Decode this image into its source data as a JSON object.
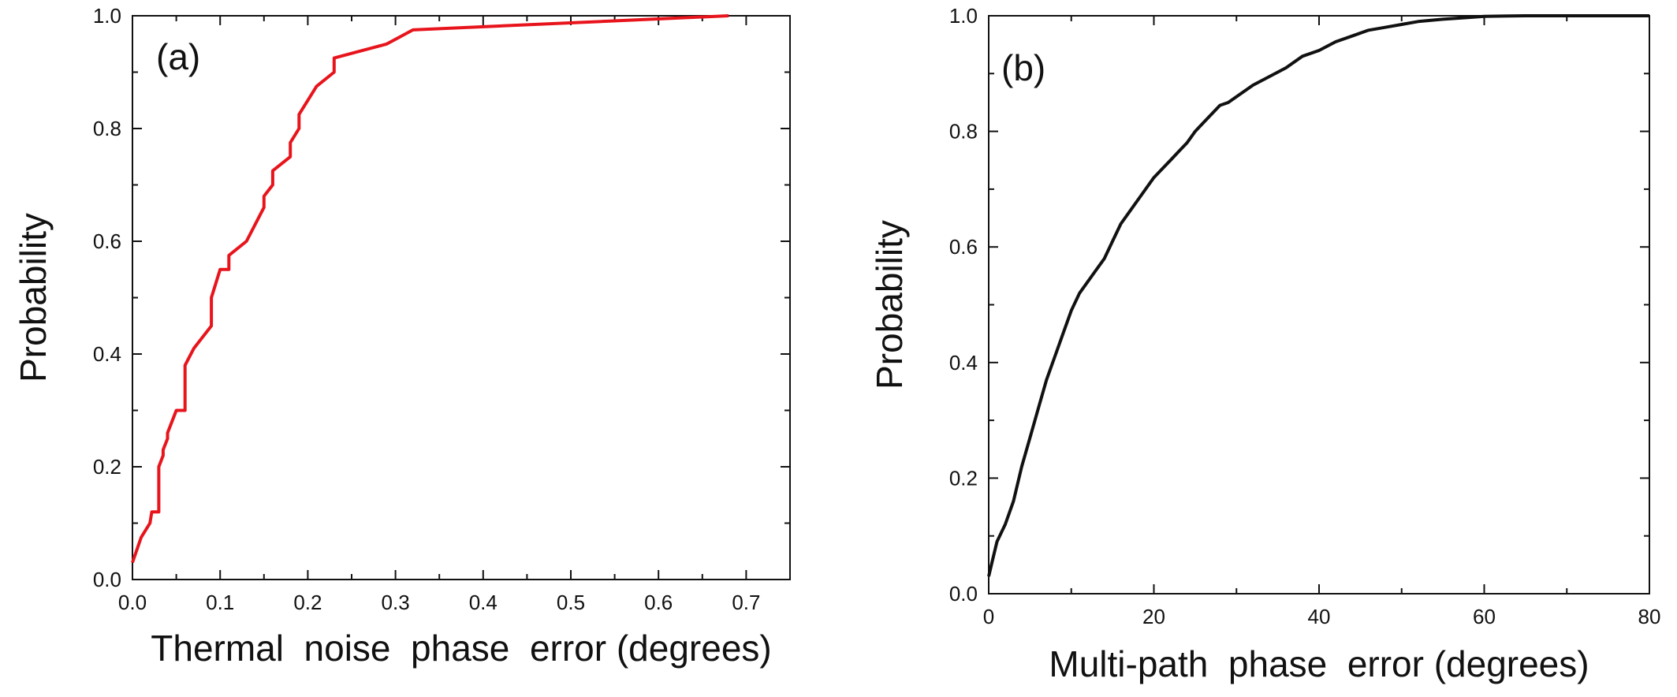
{
  "chart_data": [
    {
      "type": "line",
      "panel_label": "(a)",
      "xlabel": "Thermal  noise  phase  error (degrees)",
      "ylabel": "Probability",
      "xlim": [
        0,
        0.75
      ],
      "ylim": [
        0,
        1.0
      ],
      "xticks": [
        0.0,
        0.1,
        0.2,
        0.3,
        0.4,
        0.5,
        0.6,
        0.7
      ],
      "xtick_labels": [
        "0.0",
        "0.1",
        "0.2",
        "0.3",
        "0.4",
        "0.5",
        "0.6",
        "0.7"
      ],
      "yticks": [
        0.0,
        0.2,
        0.4,
        0.6,
        0.8,
        1.0
      ],
      "ytick_labels": [
        "0.0",
        "0.2",
        "0.4",
        "0.6",
        "0.8",
        "1.0"
      ],
      "grid": false,
      "series": [
        {
          "color": "#e8141c",
          "x": [
            0.0,
            0.01,
            0.02,
            0.022,
            0.03,
            0.03,
            0.035,
            0.035,
            0.04,
            0.04,
            0.05,
            0.06,
            0.06,
            0.07,
            0.09,
            0.09,
            0.1,
            0.11,
            0.11,
            0.13,
            0.15,
            0.15,
            0.16,
            0.16,
            0.18,
            0.18,
            0.19,
            0.19,
            0.2,
            0.21,
            0.23,
            0.23,
            0.29,
            0.32,
            0.68
          ],
          "y": [
            0.03,
            0.075,
            0.1,
            0.12,
            0.12,
            0.2,
            0.22,
            0.23,
            0.25,
            0.26,
            0.3,
            0.3,
            0.38,
            0.41,
            0.45,
            0.5,
            0.55,
            0.55,
            0.575,
            0.6,
            0.66,
            0.68,
            0.7,
            0.725,
            0.75,
            0.775,
            0.8,
            0.825,
            0.85,
            0.875,
            0.9,
            0.925,
            0.95,
            0.975,
            1.0
          ]
        }
      ]
    },
    {
      "type": "line",
      "panel_label": "(b)",
      "xlabel": "Multi-path  phase  error (degrees)",
      "ylabel": "Probability",
      "xlim": [
        0,
        80
      ],
      "ylim": [
        0,
        1.0
      ],
      "xticks": [
        0,
        20,
        40,
        60,
        80
      ],
      "xtick_labels": [
        "0",
        "20",
        "40",
        "60",
        "80"
      ],
      "yticks": [
        0.0,
        0.2,
        0.4,
        0.6,
        0.8,
        1.0
      ],
      "ytick_labels": [
        "0.0",
        "0.2",
        "0.4",
        "0.6",
        "0.8",
        "1.0"
      ],
      "grid": false,
      "series": [
        {
          "color": "#111111",
          "x": [
            0,
            0.5,
            1,
            2,
            3,
            4,
            5,
            6,
            7,
            8,
            9,
            10,
            11,
            12,
            13,
            14,
            15,
            16,
            17,
            18,
            19,
            20,
            21,
            22,
            23,
            24,
            25,
            26,
            27,
            28,
            29,
            30,
            32,
            34,
            36,
            38,
            40,
            42,
            44,
            46,
            48,
            50,
            52,
            55,
            58,
            60,
            65,
            70,
            80
          ],
          "y": [
            0.03,
            0.06,
            0.09,
            0.12,
            0.16,
            0.22,
            0.27,
            0.32,
            0.37,
            0.41,
            0.45,
            0.49,
            0.52,
            0.54,
            0.56,
            0.58,
            0.61,
            0.64,
            0.66,
            0.68,
            0.7,
            0.72,
            0.735,
            0.75,
            0.765,
            0.78,
            0.8,
            0.815,
            0.83,
            0.845,
            0.85,
            0.86,
            0.88,
            0.895,
            0.91,
            0.93,
            0.94,
            0.955,
            0.965,
            0.975,
            0.98,
            0.985,
            0.99,
            0.994,
            0.997,
            0.999,
            1.0,
            1.0,
            1.0
          ]
        }
      ]
    }
  ]
}
